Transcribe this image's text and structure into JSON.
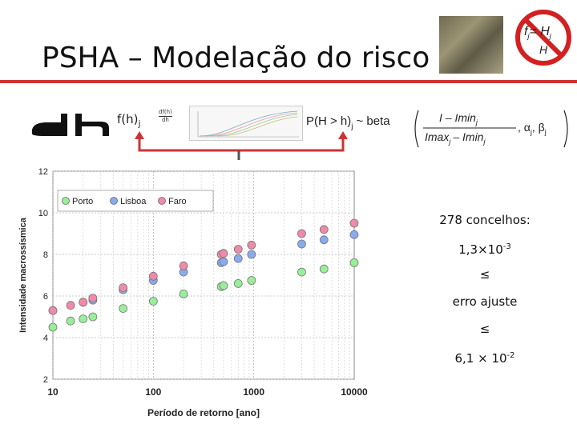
{
  "slide": {
    "title": "PSHA – Modelação do risco",
    "fh_label": "f(h)",
    "fh_sub": "j",
    "mini_top": "df(h)",
    "mini_bottom": "dh",
    "formula": {
      "lhs": "P(H > h)",
      "lhs_sub": "j",
      "dist": "~ beta",
      "num": "I – Imin",
      "num_sub": "j",
      "den_left": "Imax",
      "den_left_sub": "j",
      "den_right": "– Imin",
      "den_right_sub": "j",
      "params": ", α",
      "params_sub1": "j",
      "params_mid": ", β",
      "params_sub2": "j"
    },
    "logo": {
      "top": "f",
      "top_mid": "= H",
      "sub1": "j",
      "bottom": "H",
      "sub2": "j"
    },
    "notes": {
      "line1": "278 concelhos:",
      "line2_base": "1,3×10",
      "line2_exp": "-3",
      "line3": "≤",
      "line4": "erro ajuste",
      "line5": "≤",
      "line6_base": "6,1 × 10",
      "line6_exp": "-2"
    }
  },
  "chart_data": {
    "type": "scatter",
    "xlabel": "Período de retorno [ano]",
    "ylabel": "Intensidade macrossísmica",
    "x_scale": "log",
    "xlim": [
      10,
      10000
    ],
    "ylim": [
      2,
      12
    ],
    "x_ticks": [
      "10",
      "100",
      "1000",
      "10000"
    ],
    "y_ticks": [
      "2",
      "4",
      "6",
      "8",
      "10",
      "12"
    ],
    "grid": true,
    "legend_position": "top-left",
    "series": [
      {
        "name": "Porto",
        "color": "#99ee99",
        "x": [
          10,
          15,
          20,
          25,
          50,
          100,
          200,
          475,
          500,
          700,
          950,
          3000,
          5000,
          10000
        ],
        "y": [
          4.5,
          4.8,
          4.9,
          5.0,
          5.4,
          5.75,
          6.1,
          6.45,
          6.5,
          6.6,
          6.75,
          7.15,
          7.3,
          7.6
        ]
      },
      {
        "name": "Lisboa",
        "color": "#88aaee",
        "x": [
          10,
          20,
          25,
          50,
          100,
          200,
          475,
          500,
          700,
          950,
          3000,
          5000,
          10000
        ],
        "y": [
          5.3,
          5.7,
          5.8,
          6.3,
          6.75,
          7.15,
          7.6,
          7.65,
          7.8,
          8.0,
          8.5,
          8.7,
          8.95
        ]
      },
      {
        "name": "Faro",
        "color": "#f08aa8",
        "x": [
          10,
          15,
          20,
          25,
          50,
          100,
          200,
          475,
          500,
          700,
          950,
          3000,
          5000,
          10000
        ],
        "y": [
          5.3,
          5.55,
          5.7,
          5.9,
          6.4,
          6.95,
          7.45,
          8.0,
          8.05,
          8.25,
          8.45,
          9.0,
          9.2,
          9.5
        ]
      }
    ]
  }
}
